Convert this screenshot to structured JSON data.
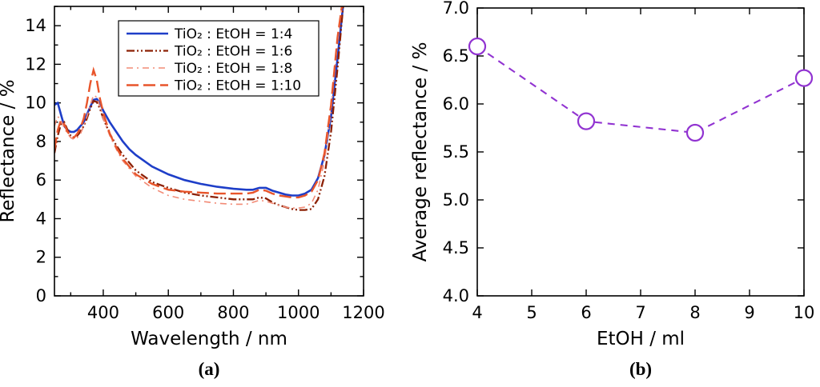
{
  "figure": {
    "background": "#ffffff"
  },
  "panels": {
    "a": {
      "caption": "(a)"
    },
    "b": {
      "caption": "(b)"
    }
  },
  "chart_data": [
    {
      "id": "chart-a",
      "type": "line",
      "title": "",
      "xlabel": "Wavelength / nm",
      "ylabel": "Reflectance / %",
      "xlim": [
        250,
        1200
      ],
      "ylim": [
        0,
        15
      ],
      "xticks": [
        400,
        600,
        800,
        1000,
        1200
      ],
      "yticks": [
        0,
        2,
        4,
        6,
        8,
        10,
        12,
        14
      ],
      "xminor": 100,
      "yminor": 1,
      "xdecimals": 0,
      "ydecimals": 0,
      "grid": false,
      "legend": {
        "show": true,
        "position": "top-inside"
      },
      "x": [
        250,
        260,
        270,
        280,
        290,
        300,
        310,
        320,
        330,
        340,
        350,
        360,
        370,
        380,
        390,
        400,
        420,
        440,
        460,
        480,
        500,
        550,
        600,
        650,
        700,
        750,
        800,
        840,
        860,
        880,
        900,
        920,
        940,
        960,
        980,
        1000,
        1020,
        1040,
        1060,
        1080,
        1100,
        1120,
        1140
      ],
      "series": [
        {
          "name": "TiO₂ : EtOH = 1:4",
          "color": "#1e3ec8",
          "dash": "",
          "width": 2.6,
          "values": [
            9.9,
            10.0,
            9.4,
            8.8,
            8.6,
            8.5,
            8.5,
            8.6,
            8.8,
            9.0,
            9.4,
            9.8,
            10.15,
            10.2,
            10.0,
            9.6,
            9.0,
            8.5,
            8.0,
            7.6,
            7.3,
            6.7,
            6.3,
            6.0,
            5.8,
            5.65,
            5.55,
            5.5,
            5.5,
            5.6,
            5.6,
            5.45,
            5.35,
            5.25,
            5.2,
            5.2,
            5.3,
            5.5,
            6.1,
            7.3,
            9.3,
            12.3,
            15.5
          ]
        },
        {
          "name": "TiO₂ : EtOH = 1:6",
          "color": "#8c2005",
          "dash": "10 3 2 3 2 3",
          "width": 2.3,
          "values": [
            7.4,
            8.3,
            8.9,
            9.0,
            8.6,
            8.3,
            8.2,
            8.3,
            8.5,
            8.8,
            9.2,
            9.7,
            10.1,
            10.05,
            9.7,
            9.2,
            8.4,
            7.8,
            7.3,
            6.9,
            6.5,
            5.9,
            5.6,
            5.35,
            5.2,
            5.1,
            5.0,
            5.0,
            5.0,
            5.1,
            5.05,
            4.85,
            4.7,
            4.6,
            4.5,
            4.45,
            4.45,
            4.5,
            5.0,
            6.2,
            8.5,
            11.8,
            15.5
          ]
        },
        {
          "name": "TiO₂ : EtOH = 1:8",
          "color": "#f28b76",
          "dash": "8 5 2 5",
          "width": 1.6,
          "values": [
            8.8,
            9.3,
            9.1,
            8.7,
            8.4,
            8.2,
            8.1,
            8.2,
            8.4,
            8.8,
            9.3,
            9.9,
            10.4,
            10.3,
            9.8,
            9.2,
            8.3,
            7.6,
            7.0,
            6.6,
            6.2,
            5.6,
            5.2,
            5.0,
            4.9,
            4.8,
            4.75,
            4.75,
            4.85,
            4.95,
            4.9,
            4.8,
            4.7,
            4.6,
            4.55,
            4.55,
            4.6,
            4.8,
            5.5,
            7.0,
            9.6,
            13.2,
            15.8
          ]
        },
        {
          "name": "TiO₂ : EtOH = 1:10",
          "color": "#e8552b",
          "dash": "15 6",
          "width": 2.4,
          "values": [
            7.6,
            8.6,
            9.1,
            8.9,
            8.5,
            8.3,
            8.2,
            8.4,
            8.7,
            9.2,
            10.0,
            11.0,
            11.7,
            11.2,
            10.2,
            9.5,
            8.4,
            7.7,
            7.1,
            6.7,
            6.3,
            5.8,
            5.5,
            5.4,
            5.35,
            5.3,
            5.3,
            5.3,
            5.35,
            5.5,
            5.45,
            5.3,
            5.2,
            5.15,
            5.1,
            5.1,
            5.2,
            5.4,
            6.0,
            7.4,
            9.9,
            13.4,
            15.8
          ]
        }
      ]
    },
    {
      "id": "chart-b",
      "type": "scatter-line",
      "title": "",
      "xlabel": "EtOH / ml",
      "ylabel": "Average reflectance / %",
      "xlim": [
        4,
        10
      ],
      "ylim": [
        4.0,
        7.0
      ],
      "xticks": [
        4,
        5,
        6,
        7,
        8,
        9,
        10
      ],
      "yticks": [
        4.0,
        4.5,
        5.0,
        5.5,
        6.0,
        6.5,
        7.0
      ],
      "xdecimals": 0,
      "ydecimals": 1,
      "grid": false,
      "legend": {
        "show": false
      },
      "series": [
        {
          "name": "Average reflectance",
          "color": "#9133d1",
          "dash": "9 7",
          "width": 2.1,
          "marker": "circle",
          "marker_size": 10,
          "x": [
            4,
            6,
            8,
            10
          ],
          "values": [
            6.6,
            5.82,
            5.7,
            6.27
          ]
        }
      ]
    }
  ]
}
